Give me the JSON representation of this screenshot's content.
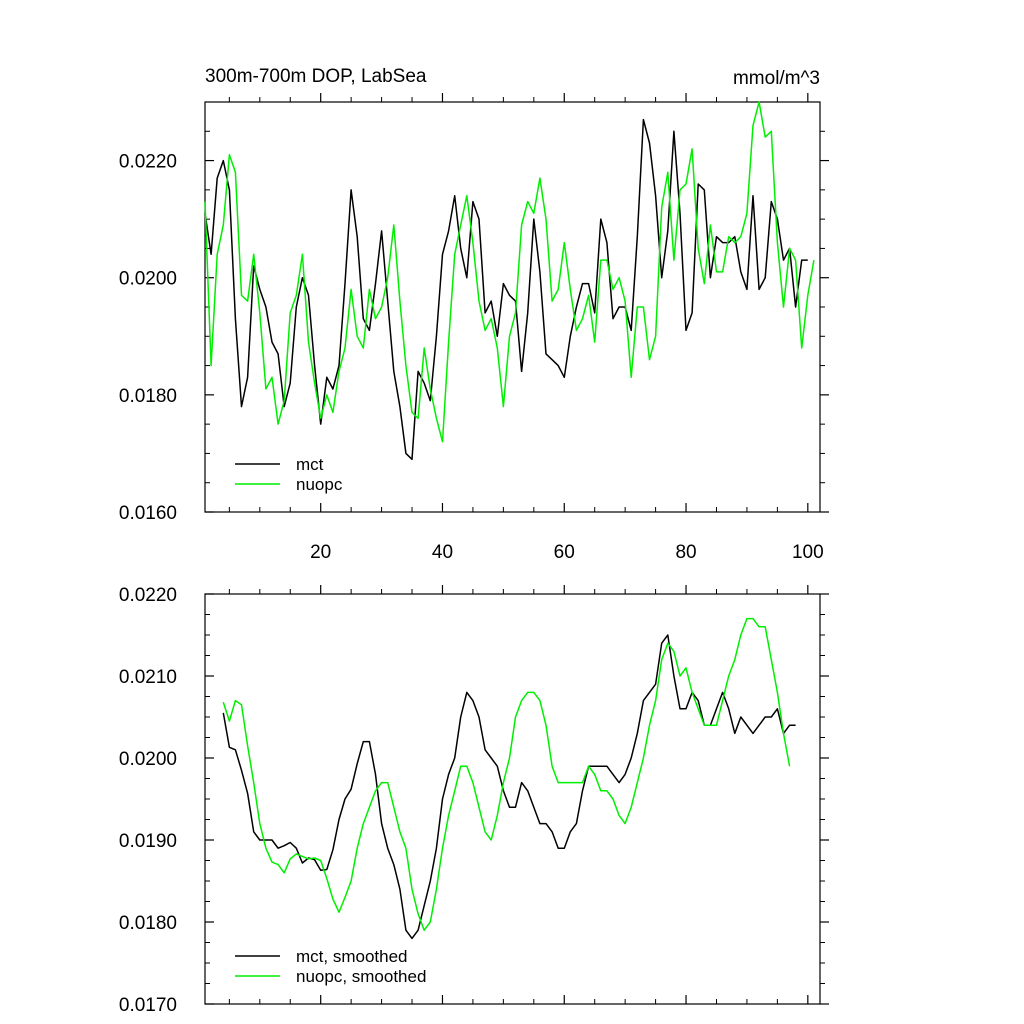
{
  "chart_data": [
    {
      "type": "line",
      "title": "300m-700m DOP, LabSea",
      "units_label": "mmol/m^3",
      "xlabel": "",
      "ylabel": "",
      "xlim": [
        1,
        102
      ],
      "ylim": [
        0.016,
        0.023
      ],
      "x_ticks": [
        20,
        40,
        60,
        80,
        100
      ],
      "x_tick_labels": [
        "20",
        "40",
        "60",
        "80",
        "100"
      ],
      "y_ticks": [
        0.016,
        0.018,
        0.02,
        0.022
      ],
      "y_tick_labels": [
        "0.0160",
        "0.0180",
        "0.0200",
        "0.0220"
      ],
      "legend_position": "bottom-left",
      "x_start": 1,
      "series": [
        {
          "name": "mct",
          "color": "#000000",
          "values": [
            0.0211,
            0.0204,
            0.0217,
            0.022,
            0.0215,
            0.0193,
            0.0178,
            0.0183,
            0.0202,
            0.0198,
            0.0195,
            0.0189,
            0.0187,
            0.0178,
            0.0182,
            0.0195,
            0.02,
            0.0197,
            0.0185,
            0.0175,
            0.0183,
            0.0181,
            0.0185,
            0.0199,
            0.0215,
            0.0207,
            0.0193,
            0.0191,
            0.0199,
            0.0208,
            0.0196,
            0.0184,
            0.0178,
            0.017,
            0.0169,
            0.0184,
            0.0182,
            0.0179,
            0.019,
            0.0204,
            0.0208,
            0.0214,
            0.0205,
            0.02,
            0.0213,
            0.021,
            0.0194,
            0.0196,
            0.019,
            0.0199,
            0.0197,
            0.0196,
            0.0184,
            0.0194,
            0.021,
            0.0201,
            0.0187,
            0.0186,
            0.0185,
            0.0183,
            0.019,
            0.0195,
            0.0199,
            0.0199,
            0.0194,
            0.021,
            0.0206,
            0.0193,
            0.0195,
            0.0195,
            0.0191,
            0.0207,
            0.0227,
            0.0223,
            0.0214,
            0.02,
            0.0208,
            0.0225,
            0.0211,
            0.0191,
            0.0194,
            0.0216,
            0.0215,
            0.02,
            0.0207,
            0.0206,
            0.0206,
            0.0207,
            0.0201,
            0.0198,
            0.0214,
            0.0198,
            0.02,
            0.0213,
            0.021,
            0.0203,
            0.0205,
            0.0195,
            0.0203,
            0.0203
          ]
        },
        {
          "name": "nuopc",
          "color": "#00ee00",
          "values": [
            0.0213,
            0.0185,
            0.0204,
            0.0209,
            0.0221,
            0.0218,
            0.0197,
            0.0196,
            0.0204,
            0.0194,
            0.0181,
            0.0183,
            0.0175,
            0.0179,
            0.0194,
            0.0197,
            0.0204,
            0.0189,
            0.0182,
            0.0176,
            0.018,
            0.0177,
            0.0184,
            0.0188,
            0.0198,
            0.019,
            0.0188,
            0.0198,
            0.0193,
            0.0195,
            0.02,
            0.0209,
            0.0196,
            0.0185,
            0.0177,
            0.0176,
            0.0188,
            0.0181,
            0.0176,
            0.0172,
            0.0189,
            0.0204,
            0.0209,
            0.0214,
            0.0206,
            0.0196,
            0.0191,
            0.0193,
            0.0188,
            0.0178,
            0.019,
            0.0194,
            0.0209,
            0.0213,
            0.0211,
            0.0217,
            0.021,
            0.0196,
            0.0198,
            0.0206,
            0.0198,
            0.0191,
            0.0193,
            0.0197,
            0.0189,
            0.0203,
            0.0203,
            0.0198,
            0.02,
            0.0196,
            0.0183,
            0.0195,
            0.0195,
            0.0186,
            0.019,
            0.0212,
            0.0218,
            0.0203,
            0.0215,
            0.0216,
            0.0222,
            0.0205,
            0.0199,
            0.0209,
            0.0201,
            0.0201,
            0.0207,
            0.0206,
            0.0207,
            0.0211,
            0.0226,
            0.023,
            0.0224,
            0.0225,
            0.0206,
            0.0195,
            0.0205,
            0.0203,
            0.0188,
            0.0197,
            0.0203
          ]
        }
      ]
    },
    {
      "type": "line",
      "title": "",
      "xlabel": "",
      "ylabel": "",
      "xlim": [
        1,
        102
      ],
      "ylim": [
        0.017,
        0.022
      ],
      "x_ticks": [
        20,
        40,
        60,
        80,
        100
      ],
      "x_tick_labels": [],
      "y_ticks": [
        0.017,
        0.018,
        0.019,
        0.02,
        0.021,
        0.022
      ],
      "y_tick_labels": [
        "0.0170",
        "0.0180",
        "0.0190",
        "0.0200",
        "0.0210",
        "0.0220"
      ],
      "legend_position": "bottom-left",
      "x_start": 4,
      "series": [
        {
          "name": "mct, smoothed",
          "color": "#000000",
          "values": [
            0.02055,
            0.02013,
            0.0201,
            0.01985,
            0.01957,
            0.0191,
            0.019,
            0.019,
            0.019,
            0.0189,
            0.01893,
            0.01897,
            0.0189,
            0.01872,
            0.01878,
            0.01876,
            0.01863,
            0.01864,
            0.01888,
            0.01925,
            0.0195,
            0.01962,
            0.01993,
            0.0202,
            0.0202,
            0.0198,
            0.0192,
            0.0189,
            0.0187,
            0.0184,
            0.0179,
            0.0178,
            0.0179,
            0.0182,
            0.0185,
            0.0189,
            0.0195,
            0.0198,
            0.02,
            0.0205,
            0.0208,
            0.0207,
            0.0205,
            0.0201,
            0.02,
            0.0199,
            0.0196,
            0.0194,
            0.0194,
            0.0197,
            0.0196,
            0.0194,
            0.0192,
            0.0192,
            0.0191,
            0.0189,
            0.0189,
            0.0191,
            0.0192,
            0.0196,
            0.0199,
            0.0199,
            0.0199,
            0.0199,
            0.0198,
            0.0197,
            0.0198,
            0.02,
            0.0203,
            0.0207,
            0.0208,
            0.0209,
            0.0214,
            0.0215,
            0.021,
            0.0206,
            0.0206,
            0.0208,
            0.0207,
            0.0204,
            0.0204,
            0.0206,
            0.0208,
            0.0206,
            0.0203,
            0.0205,
            0.0204,
            0.0203,
            0.0204,
            0.0205,
            0.0205,
            0.0206,
            0.0203,
            0.0204,
            0.0204
          ]
        },
        {
          "name": "nuopc, smoothed",
          "color": "#00ee00",
          "values": [
            0.02068,
            0.02045,
            0.0207,
            0.02065,
            0.02015,
            0.0197,
            0.0192,
            0.0189,
            0.01873,
            0.0187,
            0.0186,
            0.01877,
            0.01883,
            0.0188,
            0.01877,
            0.01878,
            0.01875,
            0.01853,
            0.01828,
            0.01812,
            0.0183,
            0.0185,
            0.0189,
            0.0192,
            0.0194,
            0.0196,
            0.0197,
            0.0197,
            0.0194,
            0.0191,
            0.0189,
            0.0184,
            0.0181,
            0.0179,
            0.018,
            0.0184,
            0.0189,
            0.0193,
            0.0196,
            0.0199,
            0.0199,
            0.0197,
            0.0194,
            0.0191,
            0.019,
            0.0193,
            0.0197,
            0.02,
            0.0205,
            0.0207,
            0.0208,
            0.0208,
            0.0207,
            0.0204,
            0.0199,
            0.0197,
            0.0197,
            0.0197,
            0.0197,
            0.0197,
            0.0199,
            0.0198,
            0.0196,
            0.0196,
            0.0195,
            0.0193,
            0.0192,
            0.0194,
            0.0197,
            0.02,
            0.0204,
            0.0207,
            0.0212,
            0.0214,
            0.0213,
            0.021,
            0.0211,
            0.0208,
            0.0206,
            0.0204,
            0.0204,
            0.0204,
            0.0207,
            0.021,
            0.0212,
            0.0215,
            0.0217,
            0.0217,
            0.0216,
            0.0216,
            0.0212,
            0.0208,
            0.0203,
            0.0199
          ]
        }
      ]
    }
  ]
}
